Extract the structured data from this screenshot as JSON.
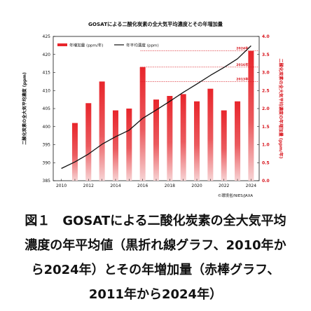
{
  "chart_data": {
    "type": "bar+line",
    "title": "GOSATによる二酸化炭素の全大気平均濃度とその年増加量",
    "x_ticks": [
      "2010",
      "2012",
      "2014",
      "2016",
      "2018",
      "2020",
      "2022",
      "2024"
    ],
    "xlim": [
      2009.4,
      2024.6
    ],
    "left_axis": {
      "label": "二酸化炭素の全大気平均濃度 (ppm)",
      "ticks": [
        "385",
        "390",
        "395",
        "400",
        "405",
        "410",
        "415",
        "420",
        "425"
      ],
      "ylim": [
        385,
        425
      ]
    },
    "right_axis": {
      "label": "二酸化炭素の全大気平均濃度の年増加量 (ppm/年)",
      "ticks": [
        "0.0",
        "0.5",
        "1.0",
        "1.5",
        "2.0",
        "2.5",
        "3.0",
        "3.5",
        "4.0"
      ],
      "ylim": [
        0,
        4.0
      ]
    },
    "series": [
      {
        "name": "年増加量 (ppm/年)",
        "kind": "bar",
        "axis": "right",
        "color": "#e8252b",
        "x": [
          2011,
          2012,
          2013,
          2014,
          2015,
          2016,
          2017,
          2018,
          2019,
          2020,
          2021,
          2022,
          2023,
          2024
        ],
        "values": [
          1.6,
          2.15,
          2.75,
          1.95,
          2.0,
          3.15,
          2.25,
          2.35,
          2.4,
          2.2,
          2.55,
          1.95,
          2.2,
          3.6
        ]
      },
      {
        "name": "年平均濃度 (ppm)",
        "kind": "line",
        "axis": "left",
        "color": "#111111",
        "x": [
          2010,
          2011,
          2012,
          2013,
          2014,
          2015,
          2016,
          2017,
          2018,
          2019,
          2020,
          2021,
          2022,
          2023,
          2024
        ],
        "values": [
          388.4,
          390.2,
          392.4,
          395.1,
          397.2,
          399.0,
          402.3,
          404.6,
          407.0,
          409.5,
          411.8,
          414.2,
          416.4,
          418.8,
          422.4
        ]
      }
    ],
    "reference_lines": [
      {
        "label": "2024年",
        "value": 3.6
      },
      {
        "label": "2016年",
        "value": 3.15
      },
      {
        "label": "2013年",
        "value": 2.75
      }
    ],
    "legend": [
      "年増加量 (ppm/年)",
      "年平均濃度 (ppm)"
    ],
    "legend_position": "top-left",
    "grid": false,
    "credit": "©環境省/NIES/JAXA"
  },
  "caption": {
    "lines": [
      "図１　GOSATによる二酸化炭素の全大気平均",
      "濃度の年平均値（黒折れ線グラフ、2010年か",
      "ら2024年）とその年増加量（赤棒グラフ、",
      "2011年から2024年）"
    ]
  }
}
